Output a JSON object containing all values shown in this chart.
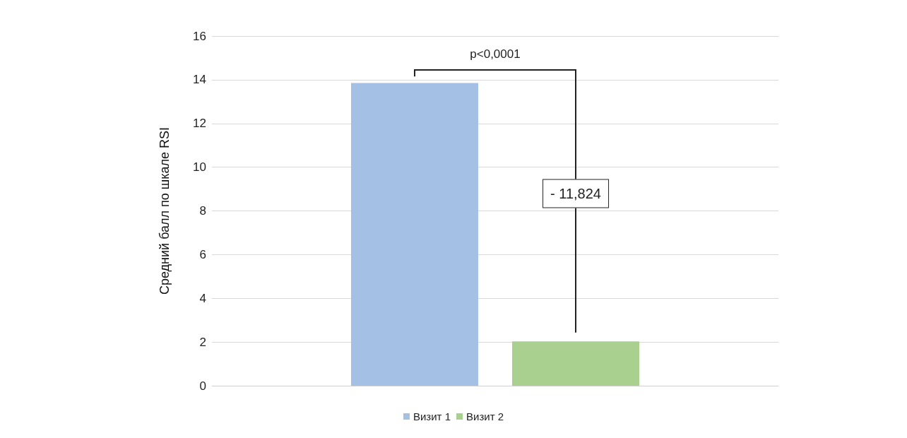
{
  "chart_data": {
    "type": "bar",
    "categories": [
      null
    ],
    "series": [
      {
        "name": "Визит 1",
        "color": "#a4c0e4",
        "values": [
          13.85
        ]
      },
      {
        "name": "Визит 2",
        "color": "#a9d08e",
        "values": [
          2.03
        ]
      }
    ],
    "ylabel": "Средний балл по шкале RSI",
    "ylim": [
      0,
      16
    ],
    "yticks": [
      0,
      2,
      4,
      6,
      8,
      10,
      12,
      14,
      16
    ],
    "grid": "y",
    "legend": "bottom",
    "annotations": [
      "p<0,0001",
      "- 11,824"
    ]
  }
}
